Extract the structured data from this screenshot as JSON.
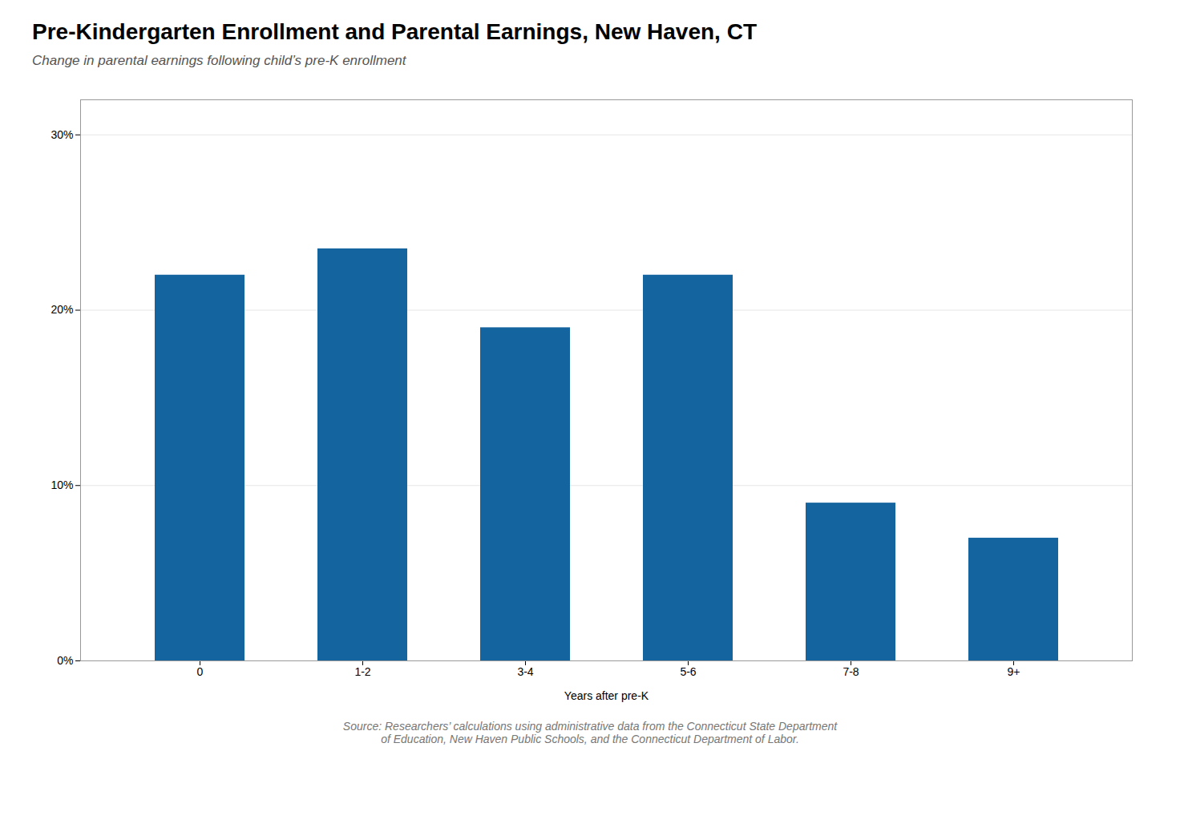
{
  "chart_data": {
    "type": "bar",
    "title": "Pre-Kindergarten Enrollment and Parental Earnings, New Haven, CT",
    "subtitle": "Change in parental earnings following child’s pre-K enrollment",
    "categories": [
      "0",
      "1-2",
      "3-4",
      "5-6",
      "7-8",
      "9+"
    ],
    "values": [
      22.0,
      23.5,
      19.0,
      22.0,
      9.0,
      7.0
    ],
    "color": "#1464a0",
    "xlabel": "Years after pre-K",
    "ylim": [
      0,
      32
    ],
    "yticks": [
      {
        "value": 0,
        "label": "0%"
      },
      {
        "value": 10,
        "label": "10%"
      },
      {
        "value": 20,
        "label": "20%"
      },
      {
        "value": 30,
        "label": "30%"
      }
    ],
    "grid": true,
    "source": "Source: Researchers’ calculations using administrative data from the Connecticut State Department\nof Education, New Haven Public Schools, and the Connecticut Department of Labor."
  }
}
